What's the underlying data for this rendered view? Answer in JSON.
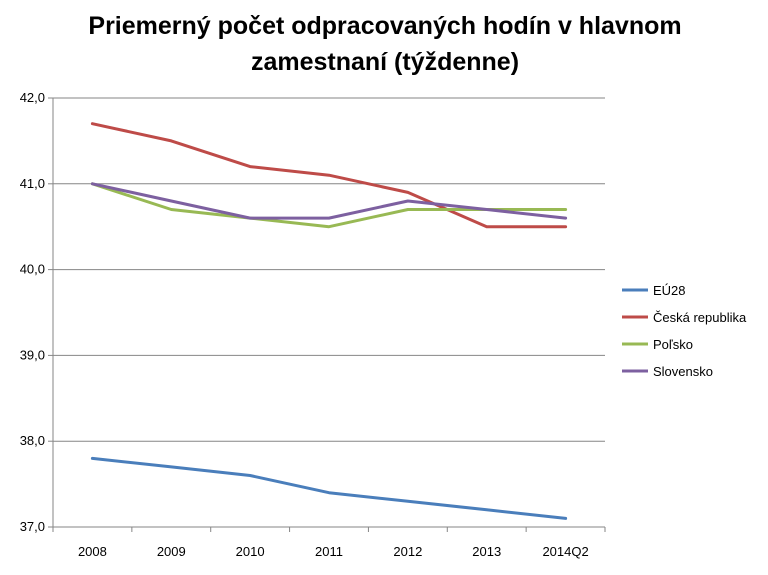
{
  "chart_data": {
    "type": "line",
    "title": "Priemerný počet odpracovaných hodín v hlavnom zamestnaní (týždenne)",
    "categories": [
      "2008",
      "2009",
      "2010",
      "2011",
      "2012",
      "2013",
      "2014Q2"
    ],
    "ylim": [
      37.0,
      42.0
    ],
    "yticks": [
      "37,0",
      "38,0",
      "39,0",
      "40,0",
      "41,0",
      "42,0"
    ],
    "grid": true,
    "legend_position": "right",
    "series": [
      {
        "name": "EÚ28",
        "color": "#4a7ebb",
        "values": [
          37.8,
          37.7,
          37.6,
          37.4,
          37.3,
          37.2,
          37.1
        ]
      },
      {
        "name": "Česká republika",
        "color": "#be4b48",
        "values": [
          41.7,
          41.5,
          41.2,
          41.1,
          40.9,
          40.5,
          40.5
        ]
      },
      {
        "name": "Poľsko",
        "color": "#98b954",
        "values": [
          41.0,
          40.7,
          40.6,
          40.5,
          40.7,
          40.7,
          40.7
        ]
      },
      {
        "name": "Slovensko",
        "color": "#7d60a0",
        "values": [
          41.0,
          40.8,
          40.6,
          40.6,
          40.8,
          40.7,
          40.6
        ]
      }
    ]
  }
}
